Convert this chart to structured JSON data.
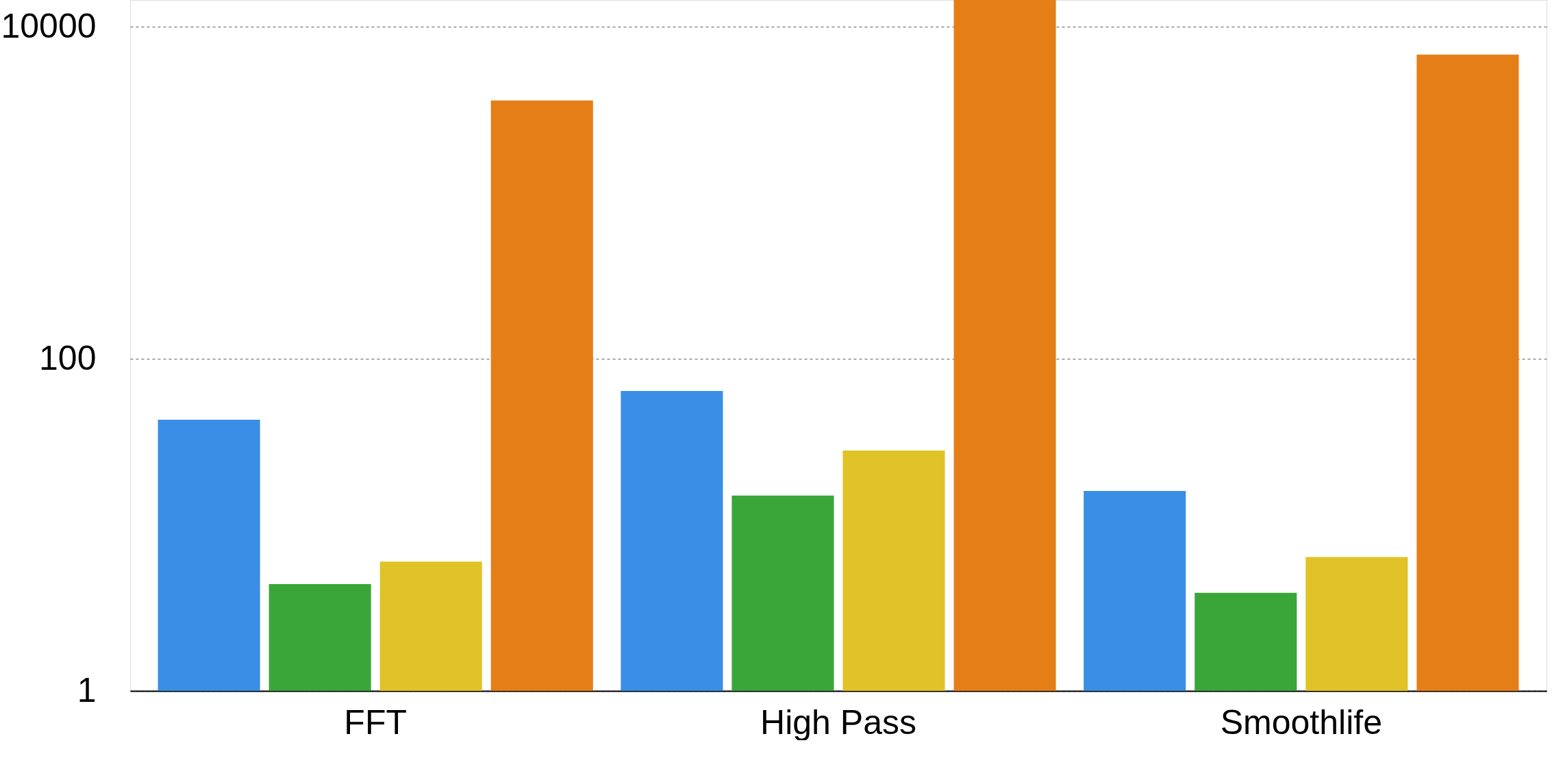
{
  "chart_data": {
    "type": "bar",
    "categories": [
      "FFT",
      "High Pass",
      "Smoothlife"
    ],
    "series": [
      {
        "color": "#3a8ee6",
        "values": [
          43,
          64,
          16
        ]
      },
      {
        "color": "#3aa63a",
        "values": [
          4.4,
          15,
          3.9
        ]
      },
      {
        "color": "#e0c326",
        "values": [
          6,
          28,
          6.4
        ]
      },
      {
        "color": "#e67e17",
        "values": [
          3600,
          14500,
          6800
        ]
      }
    ],
    "log": "y",
    "ylim": [
      1,
      14500
    ],
    "yticks": [
      1,
      100,
      10000
    ],
    "grid": "y",
    "legend": false
  }
}
